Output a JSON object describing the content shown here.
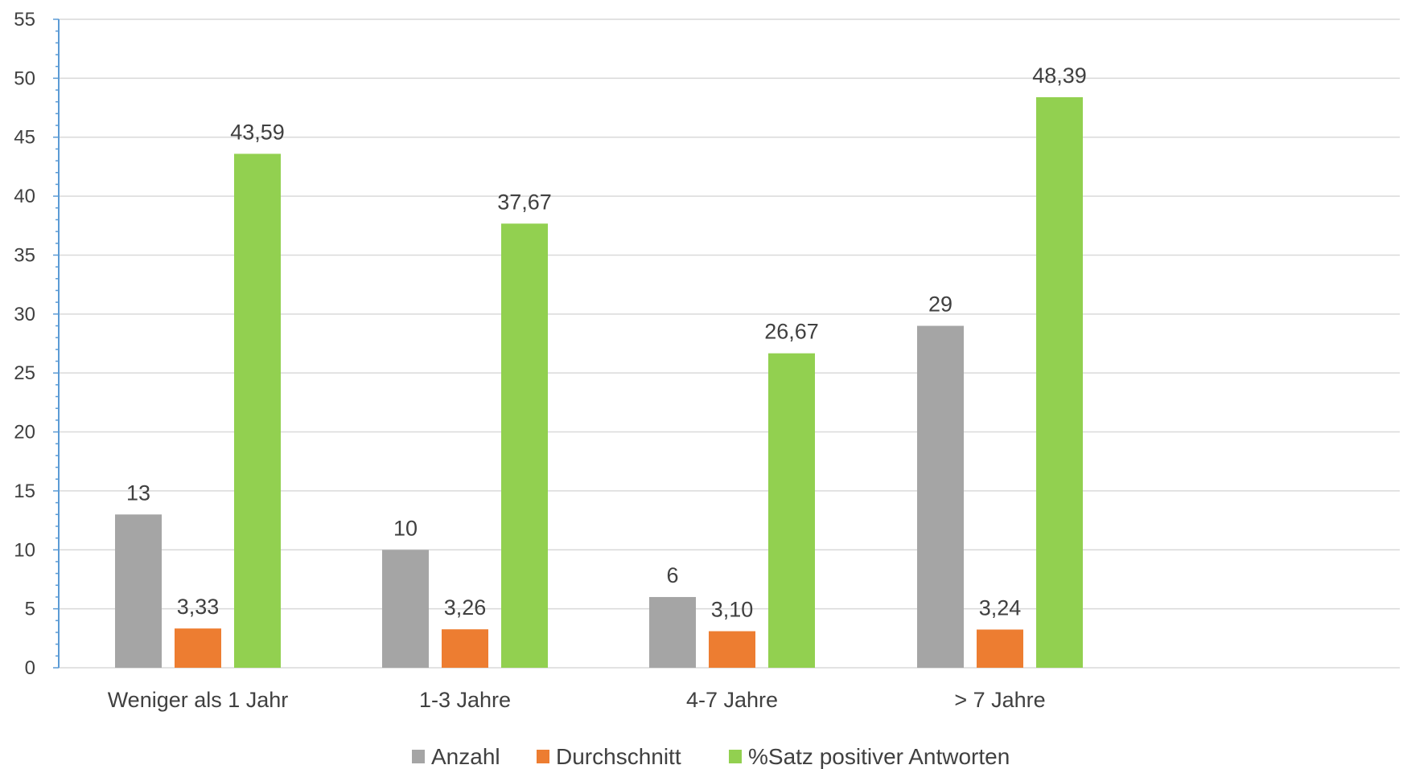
{
  "chart_data": {
    "type": "bar",
    "categories": [
      "Weniger als 1 Jahr",
      "1-3 Jahre",
      "4-7 Jahre",
      "> 7 Jahre"
    ],
    "series": [
      {
        "name": "Anzahl",
        "values": [
          13,
          10,
          6,
          29
        ],
        "labels": [
          "13",
          "10",
          "6",
          "29"
        ],
        "color": "#a5a5a5"
      },
      {
        "name": "Durchschnitt",
        "values": [
          3.33,
          3.26,
          3.1,
          3.24
        ],
        "labels": [
          "3,33",
          "3,26",
          "3,10",
          "3,24"
        ],
        "color": "#ed7d31"
      },
      {
        "name": "%Satz positiver Antworten",
        "values": [
          43.59,
          37.67,
          26.67,
          48.39
        ],
        "labels": [
          "43,59",
          "37,67",
          "26,67",
          "48,39"
        ],
        "color": "#92d050"
      }
    ],
    "ylim": [
      0,
      55
    ],
    "yticks": [
      0,
      5,
      10,
      15,
      20,
      25,
      30,
      35,
      40,
      45,
      50,
      55
    ],
    "grid": true,
    "legend": "bottom"
  }
}
